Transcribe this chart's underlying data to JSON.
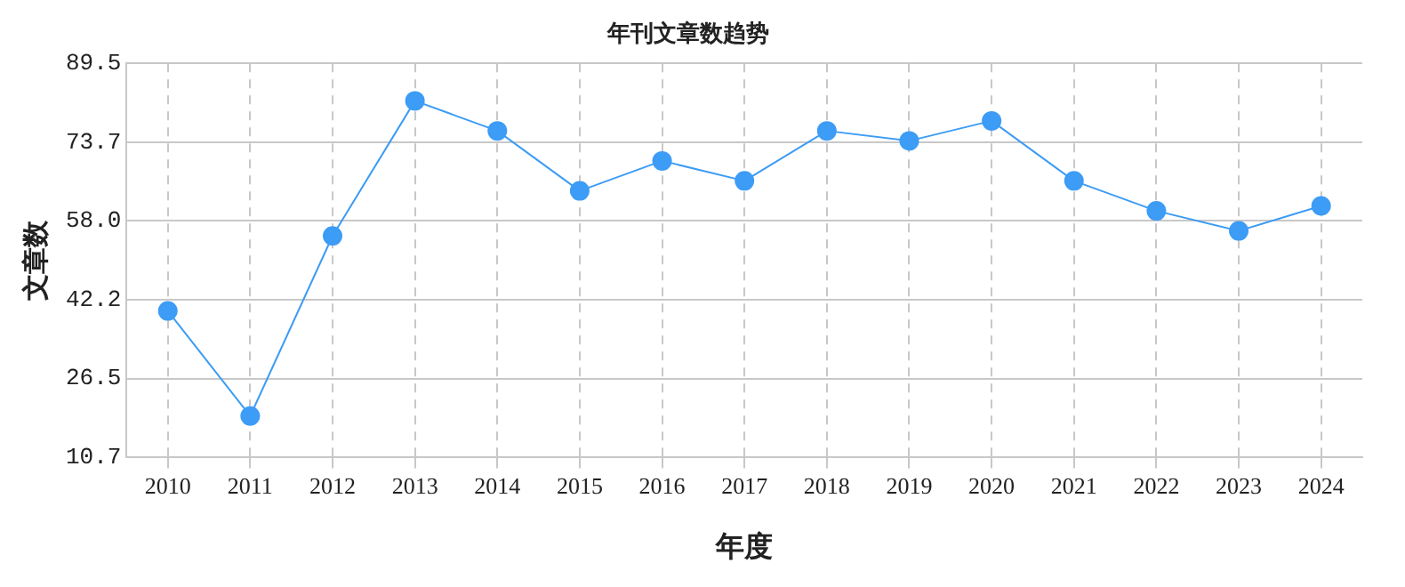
{
  "chart_data": {
    "type": "line",
    "title": "年刊文章数趋势",
    "xlabel": "年度",
    "ylabel": "文章数",
    "categories": [
      "2010",
      "2011",
      "2012",
      "2013",
      "2014",
      "2015",
      "2016",
      "2017",
      "2018",
      "2019",
      "2020",
      "2021",
      "2022",
      "2023",
      "2024"
    ],
    "series": [
      {
        "color": "#3d9cf5",
        "values": [
          40,
          19,
          55,
          82,
          76,
          64,
          70,
          66,
          76,
          74,
          78,
          66,
          60,
          56,
          61
        ]
      }
    ],
    "ylim": [
      10.7,
      89.5
    ],
    "yticks": [
      10.7,
      26.5,
      42.2,
      {
        "value": 58,
        "label": "58.0"
      },
      73.7,
      89.5
    ],
    "grid": true,
    "legend": false,
    "marker": "circle",
    "line_style": "solid"
  }
}
